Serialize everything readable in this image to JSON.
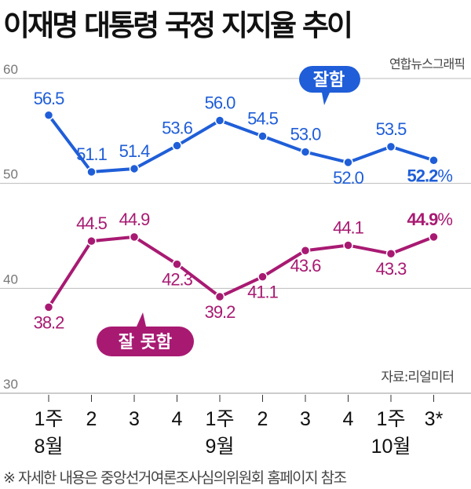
{
  "title": "이재명 대통령 국정 지지율 추이",
  "credit": "연합뉴스그래픽",
  "source": "자료:리얼미터",
  "note": "※ 자세한 내용은 중앙선거여론조사심의위원회 홈페이지 참조",
  "chart_data": {
    "type": "line",
    "title": "이재명 대통령 국정 지지율 추이",
    "ylim": [
      30,
      60
    ],
    "yticks": [
      "30",
      "40",
      "50",
      "60"
    ],
    "categories": [
      {
        "week": "1주",
        "month": "8월"
      },
      {
        "week": "2",
        "month": ""
      },
      {
        "week": "3",
        "month": ""
      },
      {
        "week": "4",
        "month": ""
      },
      {
        "week": "1주",
        "month": "9월"
      },
      {
        "week": "2",
        "month": ""
      },
      {
        "week": "3",
        "month": ""
      },
      {
        "week": "4",
        "month": ""
      },
      {
        "week": "1주",
        "month": "10월"
      },
      {
        "week": "3*",
        "month": ""
      }
    ],
    "series": [
      {
        "name": "잘함",
        "color": "#1f5ed8",
        "values": [
          56.5,
          51.1,
          51.4,
          53.6,
          56.0,
          54.5,
          53.0,
          52.0,
          53.5,
          52.2
        ]
      },
      {
        "name": "잘 못함",
        "color": "#a81a72",
        "values": [
          38.2,
          44.5,
          44.9,
          42.3,
          39.2,
          41.1,
          43.6,
          44.1,
          43.3,
          44.9
        ]
      }
    ],
    "last_suffix": "%",
    "grid": true
  }
}
